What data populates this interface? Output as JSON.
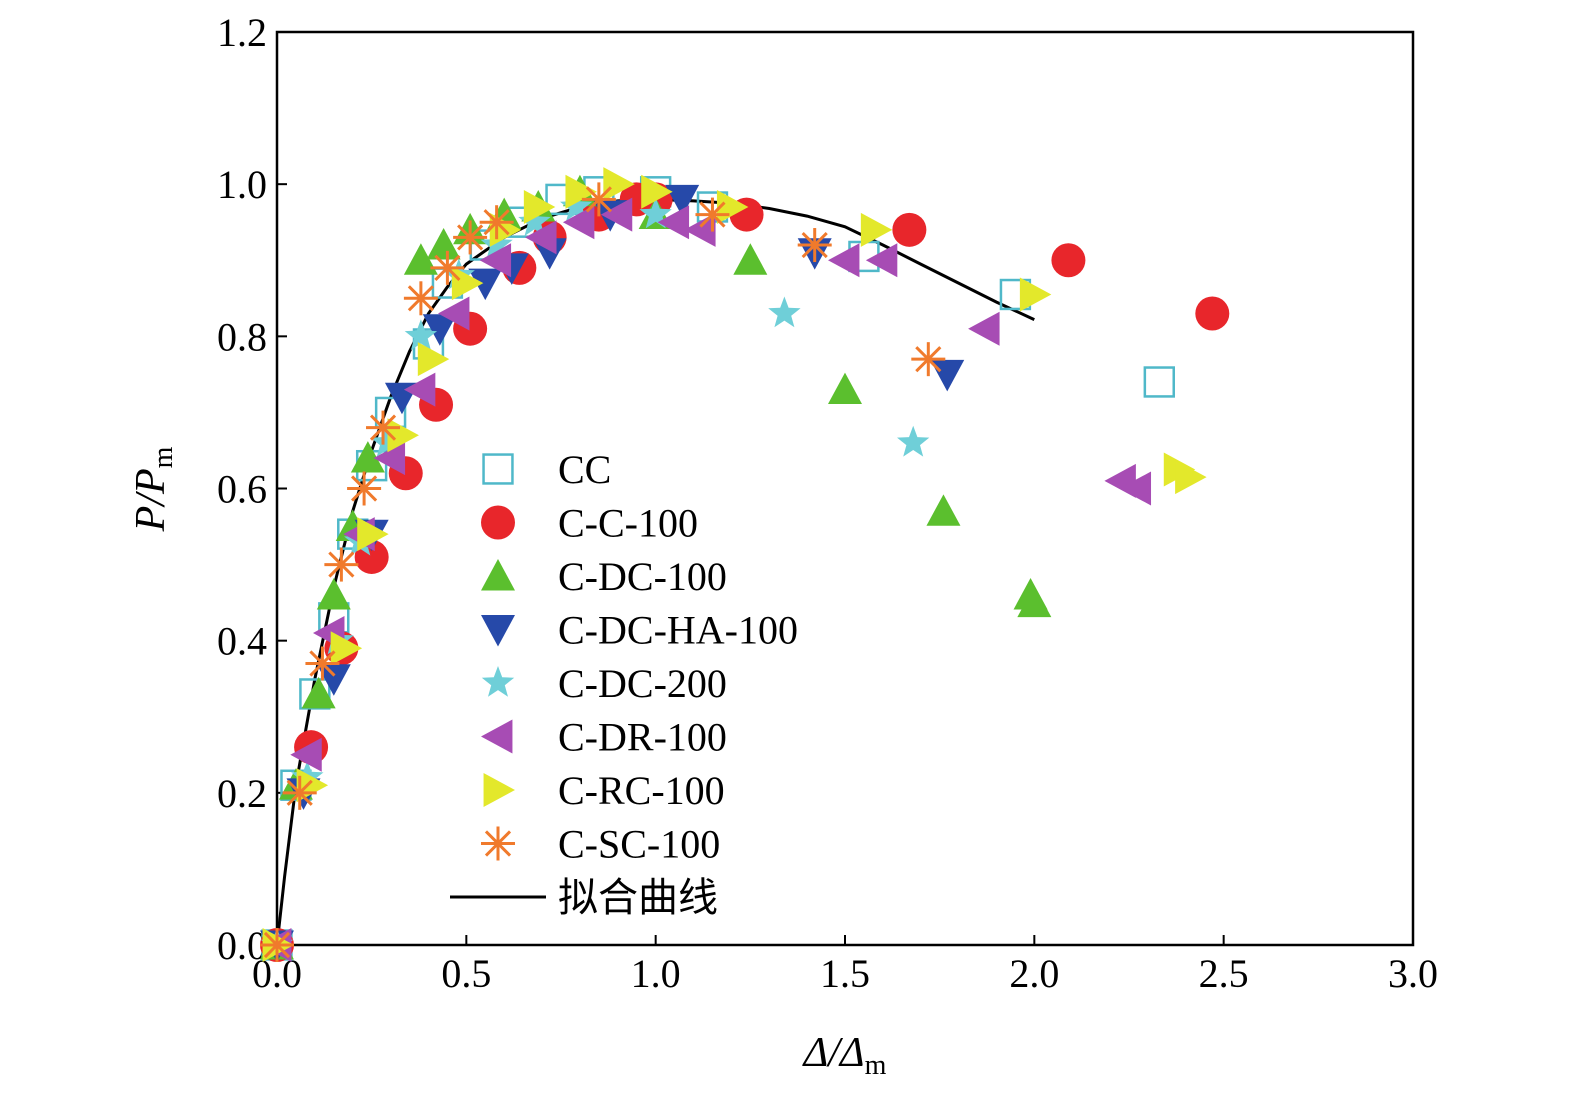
{
  "chart_data": {
    "type": "scatter",
    "title": "",
    "xlabel": "Δ/Δm",
    "ylabel": "P/Pm",
    "xlim": [
      0,
      3.0
    ],
    "ylim": [
      0,
      1.2
    ],
    "xticks": [
      "0.0",
      "0.5",
      "1.0",
      "1.5",
      "2.0",
      "2.5",
      "3.0"
    ],
    "yticks": [
      "0.0",
      "0.2",
      "0.4",
      "0.6",
      "0.8",
      "1.0",
      "1.2"
    ],
    "grid": false,
    "legend_position": "lower-left",
    "series": [
      {
        "name": "CC",
        "marker": "open-square",
        "color": "#4fb8c9",
        "x": [
          0,
          0.05,
          0.1,
          0.15,
          0.2,
          0.25,
          0.3,
          0.4,
          0.45,
          0.55,
          0.65,
          0.75,
          0.85,
          1.0,
          1.15,
          1.55,
          1.95,
          2.33
        ],
        "y": [
          0,
          0.21,
          0.33,
          0.43,
          0.54,
          0.63,
          0.7,
          0.79,
          0.87,
          0.92,
          0.95,
          0.98,
          0.99,
          0.99,
          0.97,
          0.905,
          0.855,
          0.74
        ]
      },
      {
        "name": "C-C-100",
        "marker": "circle",
        "color": "#e8262b",
        "x": [
          0,
          0.09,
          0.17,
          0.25,
          0.34,
          0.42,
          0.51,
          0.64,
          0.72,
          0.85,
          0.95,
          1.0,
          1.24,
          1.67,
          2.09,
          2.47
        ],
        "y": [
          0,
          0.26,
          0.39,
          0.51,
          0.62,
          0.71,
          0.81,
          0.89,
          0.93,
          0.96,
          0.98,
          0.98,
          0.96,
          0.94,
          0.9,
          0.83
        ]
      },
      {
        "name": "C-DC-100",
        "marker": "triangle-up",
        "color": "#5bbf2e",
        "x": [
          0,
          0.05,
          0.11,
          0.15,
          0.2,
          0.24,
          0.38,
          0.44,
          0.51,
          0.6,
          0.69,
          0.8,
          1.0,
          1.25,
          1.5,
          1.76,
          1.99,
          2.0
        ],
        "y": [
          0,
          0.21,
          0.33,
          0.46,
          0.55,
          0.64,
          0.9,
          0.92,
          0.94,
          0.96,
          0.97,
          0.99,
          0.96,
          0.9,
          0.73,
          0.57,
          0.46,
          0.45
        ]
      },
      {
        "name": "C-DC-HA-100",
        "marker": "triangle-down",
        "color": "#2649a9",
        "x": [
          0,
          0.07,
          0.15,
          0.25,
          0.33,
          0.43,
          0.55,
          0.62,
          0.72,
          0.88,
          1.07,
          1.42,
          1.77
        ],
        "y": [
          0,
          0.2,
          0.35,
          0.54,
          0.72,
          0.81,
          0.87,
          0.89,
          0.91,
          0.96,
          0.98,
          0.91,
          0.75
        ]
      },
      {
        "name": "C-DC-200",
        "marker": "star",
        "color": "#6fcfd8",
        "x": [
          0,
          0.08,
          0.16,
          0.22,
          0.29,
          0.38,
          0.48,
          0.58,
          0.68,
          0.79,
          1.0,
          1.34,
          1.68
        ],
        "y": [
          0,
          0.22,
          0.4,
          0.53,
          0.66,
          0.8,
          0.88,
          0.92,
          0.95,
          0.97,
          0.96,
          0.83,
          0.66
        ]
      },
      {
        "name": "C-DR-100",
        "marker": "triangle-left",
        "color": "#a74cb4",
        "x": [
          0,
          0.08,
          0.14,
          0.22,
          0.3,
          0.38,
          0.47,
          0.58,
          0.7,
          0.8,
          0.9,
          1.05,
          1.12,
          1.5,
          1.6,
          1.87,
          2.23,
          2.27
        ],
        "y": [
          0,
          0.25,
          0.41,
          0.54,
          0.64,
          0.73,
          0.83,
          0.9,
          0.93,
          0.95,
          0.96,
          0.95,
          0.94,
          0.9,
          0.9,
          0.81,
          0.61,
          0.6
        ]
      },
      {
        "name": "C-RC-100",
        "marker": "triangle-right",
        "color": "#e3e82b",
        "x": [
          0,
          0.09,
          0.18,
          0.25,
          0.33,
          0.41,
          0.5,
          0.6,
          0.69,
          0.8,
          0.9,
          1.0,
          1.2,
          1.58,
          2.0,
          2.38,
          2.41
        ],
        "y": [
          0,
          0.21,
          0.39,
          0.54,
          0.67,
          0.77,
          0.87,
          0.94,
          0.97,
          0.99,
          1.0,
          0.99,
          0.97,
          0.94,
          0.855,
          0.625,
          0.615
        ]
      },
      {
        "name": "C-SC-100",
        "marker": "asterisk",
        "color": "#f07a2c",
        "x": [
          0,
          0.06,
          0.12,
          0.17,
          0.23,
          0.28,
          0.38,
          0.45,
          0.51,
          0.58,
          0.85,
          1.15,
          1.42,
          1.72
        ],
        "y": [
          0,
          0.2,
          0.37,
          0.5,
          0.6,
          0.68,
          0.85,
          0.89,
          0.93,
          0.95,
          0.98,
          0.96,
          0.92,
          0.77
        ]
      }
    ],
    "fit_curve": {
      "name": "拟合曲线",
      "color": "#000000",
      "x": [
        0,
        0.02,
        0.05,
        0.1,
        0.15,
        0.2,
        0.25,
        0.3,
        0.35,
        0.4,
        0.45,
        0.5,
        0.6,
        0.7,
        0.8,
        0.9,
        1.0,
        1.1,
        1.2,
        1.3,
        1.4,
        1.5,
        1.6,
        1.7,
        1.8,
        1.9,
        2.0
      ],
      "y": [
        0,
        0.09,
        0.21,
        0.35,
        0.47,
        0.57,
        0.65,
        0.72,
        0.78,
        0.83,
        0.865,
        0.895,
        0.93,
        0.955,
        0.97,
        0.978,
        0.98,
        0.978,
        0.975,
        0.968,
        0.958,
        0.944,
        0.92,
        0.895,
        0.87,
        0.845,
        0.822
      ]
    }
  }
}
